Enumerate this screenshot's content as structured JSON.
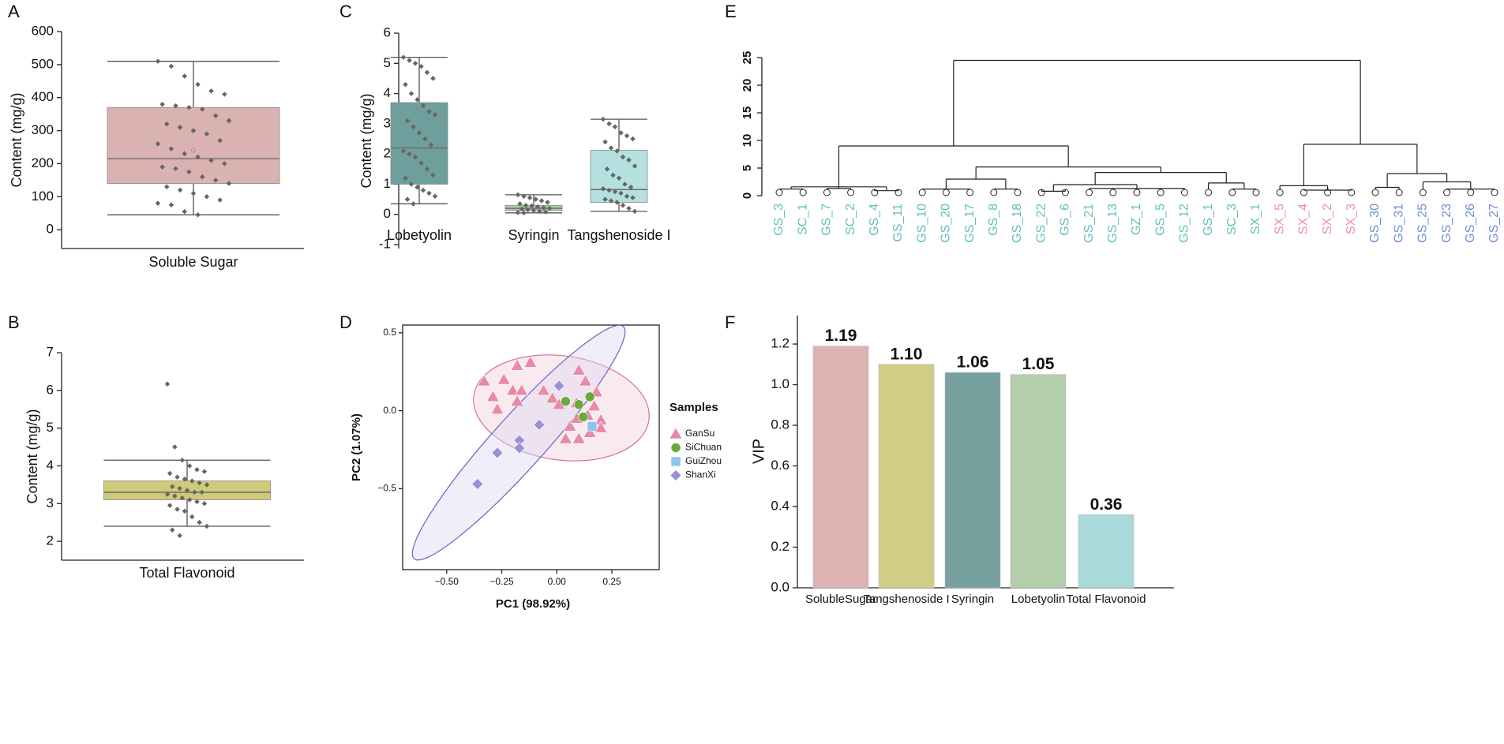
{
  "chart_data": [
    {
      "panel": "A",
      "type": "box",
      "ylabel": "Content (mg/g)",
      "categories": [
        "Soluble Sugar"
      ],
      "colors": [
        "#dab2b2"
      ],
      "ylim": [
        -57,
        600
      ],
      "yticks": [
        0,
        100,
        200,
        300,
        400,
        500,
        600
      ],
      "boxes": [
        {
          "min": 45,
          "q1": 140,
          "median": 215,
          "q3": 370,
          "max": 510,
          "mean": 240,
          "points": [
            510,
            495,
            465,
            440,
            420,
            410,
            380,
            375,
            370,
            365,
            345,
            330,
            320,
            310,
            300,
            290,
            270,
            260,
            245,
            230,
            220,
            210,
            200,
            190,
            185,
            175,
            160,
            150,
            140,
            130,
            120,
            110,
            100,
            90,
            80,
            75,
            55,
            45
          ]
        }
      ]
    },
    {
      "panel": "B",
      "type": "box",
      "ylabel": "Content (mg/g)",
      "categories": [
        "Total Flavonoid"
      ],
      "colors": [
        "#cfc97a"
      ],
      "ylim": [
        1.5,
        7
      ],
      "yticks": [
        2,
        3,
        4,
        5,
        6,
        7
      ],
      "boxes": [
        {
          "min": 2.4,
          "q1": 3.1,
          "median": 3.3,
          "q3": 3.6,
          "max": 4.15,
          "points": [
            6.17,
            4.5,
            4.15,
            4.0,
            3.9,
            3.85,
            3.8,
            3.7,
            3.65,
            3.6,
            3.55,
            3.5,
            3.45,
            3.4,
            3.35,
            3.3,
            3.3,
            3.25,
            3.2,
            3.15,
            3.1,
            3.05,
            3.0,
            2.95,
            2.85,
            2.8,
            2.65,
            2.5,
            2.4,
            2.3,
            2.15
          ]
        }
      ]
    },
    {
      "panel": "C",
      "type": "box",
      "ylabel": "Content (mg/g)",
      "categories": [
        "Lobetyolin",
        "Syringin",
        "Tangshenoside I"
      ],
      "colors": [
        "#6e9f9c",
        "#a9cfa1",
        "#b5e0e0"
      ],
      "ylim": [
        -1.13,
        6
      ],
      "yticks": [
        -1,
        0,
        1,
        2,
        3,
        4,
        5,
        6
      ],
      "boxes": [
        {
          "min": 0.35,
          "q1": 1.0,
          "median": 2.2,
          "q3": 3.7,
          "max": 5.2,
          "points": [
            5.2,
            5.1,
            5.0,
            4.9,
            4.7,
            4.5,
            4.3,
            4.0,
            3.8,
            3.6,
            3.4,
            3.3,
            3.1,
            2.9,
            2.7,
            2.5,
            2.3,
            2.1,
            2.0,
            1.9,
            1.7,
            1.5,
            1.3,
            1.2,
            1.0,
            0.9,
            0.8,
            0.7,
            0.6,
            0.5,
            0.35
          ]
        },
        {
          "min": 0.05,
          "q1": 0.13,
          "median": 0.2,
          "q3": 0.3,
          "max": 0.65,
          "points": [
            0.65,
            0.6,
            0.55,
            0.5,
            0.45,
            0.4,
            0.35,
            0.3,
            0.28,
            0.25,
            0.22,
            0.2,
            0.18,
            0.15,
            0.13,
            0.1,
            0.08,
            0.06,
            0.05
          ]
        },
        {
          "min": 0.1,
          "q1": 0.4,
          "median": 0.82,
          "q3": 2.12,
          "max": 3.15,
          "points": [
            3.15,
            3.0,
            2.9,
            2.7,
            2.6,
            2.5,
            2.4,
            2.2,
            2.1,
            1.9,
            1.8,
            1.6,
            1.5,
            1.3,
            1.2,
            1.0,
            0.9,
            0.85,
            0.8,
            0.75,
            0.7,
            0.6,
            0.55,
            0.5,
            0.45,
            0.4,
            0.3,
            0.2,
            0.1
          ]
        }
      ]
    },
    {
      "panel": "D",
      "type": "scatter",
      "xlabel": "PC1 (98.92%)",
      "ylabel": "PC2 (1.07%)",
      "legend_title": "Samples",
      "xlim": [
        -0.7,
        0.465
      ],
      "ylim": [
        -1.02,
        0.55
      ],
      "xticks": [
        {
          "value": -0.5,
          "label": "−0.50"
        },
        {
          "value": -0.25,
          "label": "−0.25"
        },
        {
          "value": 0,
          "label": "0.00"
        },
        {
          "value": 0.25,
          "label": "0.25"
        }
      ],
      "yticks": [
        {
          "value": -0.5,
          "label": "−0.5"
        },
        {
          "value": 0,
          "label": "0.0"
        },
        0.5
      ],
      "series": [
        {
          "name": "GanSu",
          "color": "#e889a8",
          "marker": "triangle",
          "x": [
            -0.18,
            -0.12,
            -0.33,
            -0.24,
            -0.29,
            -0.2,
            -0.18,
            -0.27,
            -0.16,
            -0.06,
            -0.02,
            0.01,
            0.1,
            0.18,
            0.13,
            0.09,
            0.17,
            0.2,
            0.14,
            0.2,
            0.06,
            0.1,
            0.04,
            0.15,
            0.09
          ],
          "y": [
            0.29,
            0.31,
            0.19,
            0.2,
            0.09,
            0.13,
            0.06,
            0.01,
            0.13,
            0.13,
            0.08,
            0.04,
            0.26,
            0.12,
            0.19,
            0.05,
            0.03,
            -0.06,
            -0.03,
            -0.11,
            -0.1,
            -0.18,
            -0.18,
            -0.14,
            -0.05
          ]
        },
        {
          "name": "SiChuan",
          "color": "#6aaa3a",
          "marker": "circle",
          "x": [
            0.04,
            0.1,
            0.15,
            0.12
          ],
          "y": [
            0.06,
            0.04,
            0.09,
            -0.04
          ]
        },
        {
          "name": "GuiZhou",
          "color": "#8fc4ee",
          "marker": "square",
          "x": [
            0.16
          ],
          "y": [
            -0.1
          ]
        },
        {
          "name": "ShanXi",
          "color": "#9b8fd6",
          "marker": "diamond",
          "x": [
            0.01,
            -0.08,
            -0.17,
            -0.17,
            -0.27,
            -0.36
          ],
          "y": [
            0.16,
            -0.09,
            -0.19,
            -0.24,
            -0.27,
            -0.47
          ]
        }
      ]
    },
    {
      "panel": "E",
      "type": "dendrogram",
      "ylim": [
        0,
        25
      ],
      "yticks": [
        0,
        5,
        10,
        15,
        20,
        25
      ],
      "leaves": [
        {
          "label": "GS_3",
          "color": "#5fc1b8"
        },
        {
          "label": "SC_1",
          "color": "#5fc1b8"
        },
        {
          "label": "GS_7",
          "color": "#5fc1b8"
        },
        {
          "label": "SC_2",
          "color": "#5fc1b8"
        },
        {
          "label": "GS_4",
          "color": "#5fc1b8"
        },
        {
          "label": "GS_11",
          "color": "#5fc1b8"
        },
        {
          "label": "GS_10",
          "color": "#5fc1b8"
        },
        {
          "label": "GS_20",
          "color": "#5fc1b8"
        },
        {
          "label": "GS_17",
          "color": "#5fc1b8"
        },
        {
          "label": "GS_8",
          "color": "#5fc1b8"
        },
        {
          "label": "GS_18",
          "color": "#5fc1b8"
        },
        {
          "label": "GS_22",
          "color": "#5fc1b8"
        },
        {
          "label": "GS_6",
          "color": "#5fc1b8"
        },
        {
          "label": "GS_21",
          "color": "#5fc1b8"
        },
        {
          "label": "GS_13",
          "color": "#5fc1b8"
        },
        {
          "label": "GZ_1",
          "color": "#5fc1b8"
        },
        {
          "label": "GS_5",
          "color": "#5fc1b8"
        },
        {
          "label": "GS_12",
          "color": "#5fc1b8"
        },
        {
          "label": "GS_1",
          "color": "#5fc1b8"
        },
        {
          "label": "SC_3",
          "color": "#5fc1b8"
        },
        {
          "label": "SX_1",
          "color": "#5fc1b8"
        },
        {
          "label": "SX_5",
          "color": "#ef8fa5"
        },
        {
          "label": "SX_4",
          "color": "#ef8fa5"
        },
        {
          "label": "SX_2",
          "color": "#ef8fa5"
        },
        {
          "label": "SX_3",
          "color": "#ef8fa5"
        },
        {
          "label": "GS_30",
          "color": "#6f8fd2"
        },
        {
          "label": "GS_31",
          "color": "#6f8fd2"
        },
        {
          "label": "GS_25",
          "color": "#6f8fd2"
        },
        {
          "label": "GS_23",
          "color": "#6f8fd2"
        },
        {
          "label": "GS_26",
          "color": "#6f8fd2"
        },
        {
          "label": "GS_27",
          "color": "#6f8fd2"
        }
      ],
      "tree": {
        "height": 24.5,
        "children": [
          {
            "height": 9,
            "children": [
              {
                "height": 1.6,
                "children": [
                  {
                    "height": 1.2,
                    "children": [
                      0,
                      1
                    ]
                  },
                  {
                    "height": 1.3,
                    "children": [
                      2,
                      3
                    ]
                  },
                  {
                    "height": 0.9,
                    "children": [
                      4,
                      5
                    ]
                  }
                ]
              },
              {
                "height": 5.2,
                "children": [
                  {
                    "height": 3,
                    "children": [
                      {
                        "height": 1.2,
                        "children": [
                          6,
                          7,
                          8
                        ]
                      },
                      {
                        "height": 1.2,
                        "children": [
                          9,
                          10
                        ]
                      }
                    ]
                  },
                  {
                    "height": 4.2,
                    "children": [
                      {
                        "height": 2,
                        "children": [
                          {
                            "height": 0.8,
                            "children": [
                              11,
                              12
                            ]
                          },
                          {
                            "height": 1.3,
                            "children": [
                              13,
                              14,
                              15,
                              16,
                              17
                            ]
                          }
                        ]
                      },
                      {
                        "height": 2.3,
                        "children": [
                          18,
                          {
                            "height": 1.2,
                            "children": [
                              19,
                              20
                            ]
                          }
                        ]
                      }
                    ]
                  }
                ]
              }
            ]
          },
          {
            "height": 9.3,
            "children": [
              {
                "height": 1.8,
                "children": [
                  21,
                  {
                    "height": 1,
                    "children": [
                      22,
                      23,
                      24
                    ]
                  }
                ]
              },
              {
                "height": 4,
                "children": [
                  {
                    "height": 1.5,
                    "children": [
                      25,
                      26
                    ]
                  },
                  {
                    "height": 2.5,
                    "children": [
                      27,
                      {
                        "height": 1.2,
                        "children": [
                          28,
                          29,
                          30
                        ]
                      }
                    ]
                  }
                ]
              }
            ]
          }
        ]
      }
    },
    {
      "panel": "F",
      "type": "bar",
      "ylabel": "VIP",
      "categories": [
        "SolubleSugar",
        "Tangshenoside I",
        "Syringin",
        "Lobetyolin",
        "Total Flavonoid"
      ],
      "values": [
        1.19,
        1.1,
        1.06,
        1.05,
        0.36
      ],
      "value_labels": [
        "1.19",
        "1.10",
        "1.06",
        "1.05",
        "0.36"
      ],
      "colors": [
        "#dbb3b3",
        "#d2cd86",
        "#76a19f",
        "#b2ceab",
        "#a9d9d9"
      ],
      "ylim": [
        0,
        1.34
      ],
      "yticks": [
        {
          "value": 0,
          "label": "0.0"
        },
        {
          "value": 0.2,
          "label": "0.2"
        },
        {
          "value": 0.4,
          "label": "0.4"
        },
        {
          "value": 0.6,
          "label": "0.6"
        },
        {
          "value": 0.8,
          "label": "0.8"
        },
        {
          "value": 1,
          "label": "1.0"
        },
        {
          "value": 1.2,
          "label": "1.2"
        }
      ]
    }
  ]
}
